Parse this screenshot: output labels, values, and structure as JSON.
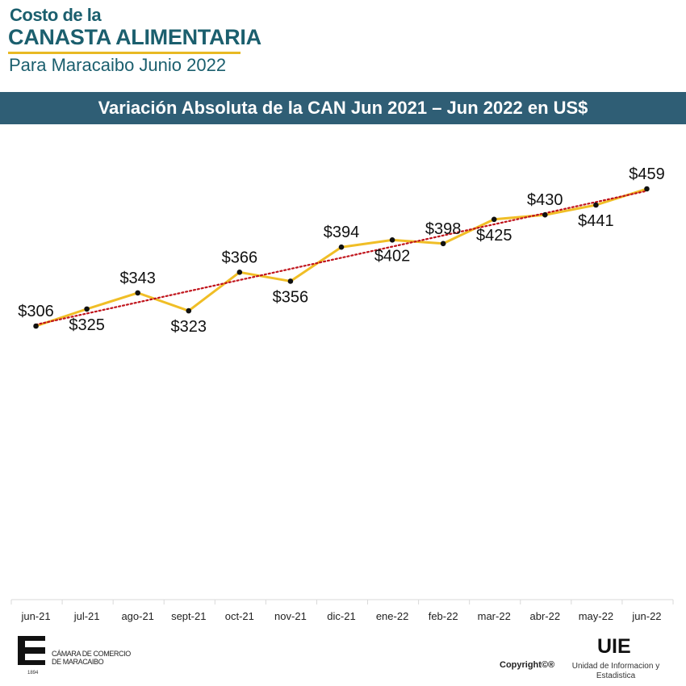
{
  "header": {
    "line1": "Costo de la",
    "line2": "CANASTA ALIMENTARIA",
    "line3": "Para Maracaibo Junio 2022"
  },
  "colors": {
    "brand": "#1b5f6e",
    "accent": "#e8b923",
    "banner": "#2f5e75",
    "series_line": "#f0be26",
    "trendline": "#c0141c"
  },
  "chart_data": {
    "type": "line",
    "title": "Variación Absoluta de la CAN Jun 2021 – Jun 2022 en US$",
    "categories": [
      "jun-21",
      "jul-21",
      "ago-21",
      "sept-21",
      "oct-21",
      "nov-21",
      "dic-21",
      "ene-22",
      "feb-22",
      "mar-22",
      "abr-22",
      "may-22",
      "jun-22"
    ],
    "series": [
      {
        "values": [
          306,
          325,
          343,
          323,
          366,
          356,
          394,
          402,
          398,
          425,
          430,
          441,
          459
        ]
      }
    ],
    "data_labels": [
      "$306",
      "$325",
      "$343",
      "$323",
      "$366",
      "$356",
      "$394",
      "$402",
      "$398",
      "$425",
      "$430",
      "$441",
      "$459"
    ],
    "trendline": "linear",
    "yaxis_visible": false,
    "grid": false,
    "legend": "none"
  },
  "footer": {
    "logo_name": "CÁMARA DE COMERCIO DE MARACAIBO",
    "logo_line1": "CÁMARA DE COMERCIO",
    "logo_line2": "DE MARACAIBO",
    "logo_year": "1894",
    "copyright": "Copyright©®",
    "uie": "UIE",
    "uie_sub1": "Unidad de Informacion y",
    "uie_sub2": "Estadistica"
  }
}
